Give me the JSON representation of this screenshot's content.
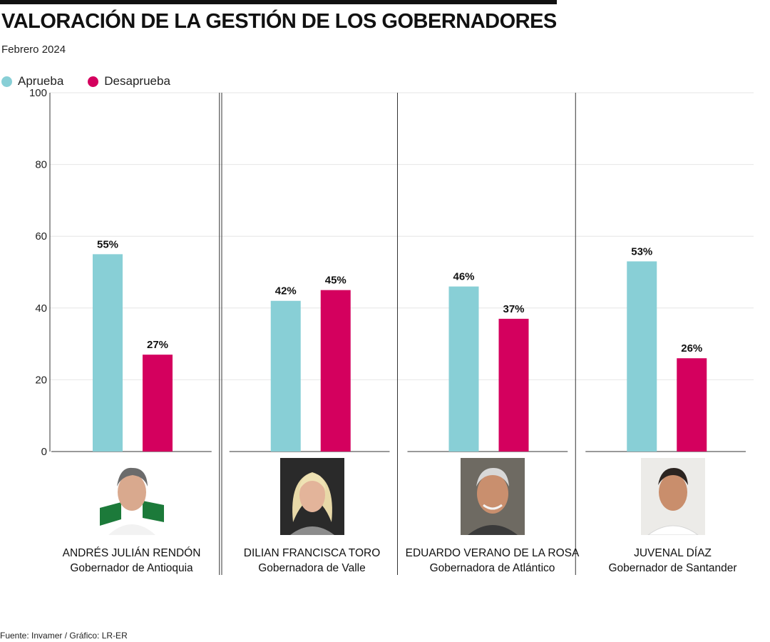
{
  "title": "VALORACIÓN DE LA GESTIÓN DE LOS GOBERNADORES",
  "subtitle": "Febrero 2024",
  "footer": "Fuente: Invamer / Gráfico: LR-ER",
  "colors": {
    "aprueba": "#88cfd6",
    "desaprueba": "#d4005e",
    "grid": "#e6e6e6",
    "axis": "#333333"
  },
  "chart_data": {
    "type": "bar",
    "categories": [
      "ANDRÉS JULIÁN RENDÓN",
      "DILIAN FRANCISCA TORO",
      "EDUARDO VERANO DE LA ROSA",
      "JUVENAL DÍAZ"
    ],
    "series": [
      {
        "name": "Aprueba",
        "color": "#88cfd6",
        "values": [
          55,
          42,
          46,
          53
        ],
        "labels": [
          "55%",
          "42%",
          "46%",
          "53%"
        ]
      },
      {
        "name": "Desaprueba",
        "color": "#d4005e",
        "values": [
          27,
          45,
          37,
          26
        ],
        "labels": [
          "27%",
          "45%",
          "37%",
          "26%"
        ]
      }
    ],
    "ylim": [
      0,
      100
    ],
    "yticks": [
      "0",
      "20",
      "40",
      "60",
      "80",
      "100"
    ],
    "grid": true,
    "legend_position": "top-left"
  },
  "people": [
    {
      "name": "ANDRÉS JULIÁN RENDÓN",
      "role": "Gobernador de Antioquia"
    },
    {
      "name": "DILIAN FRANCISCA TORO",
      "role": "Gobernadora de Valle"
    },
    {
      "name": "EDUARDO VERANO DE LA ROSA",
      "role": "Gobernadora de Atlántico"
    },
    {
      "name": "JUVENAL DÍAZ",
      "role": "Gobernador de Santander"
    }
  ]
}
